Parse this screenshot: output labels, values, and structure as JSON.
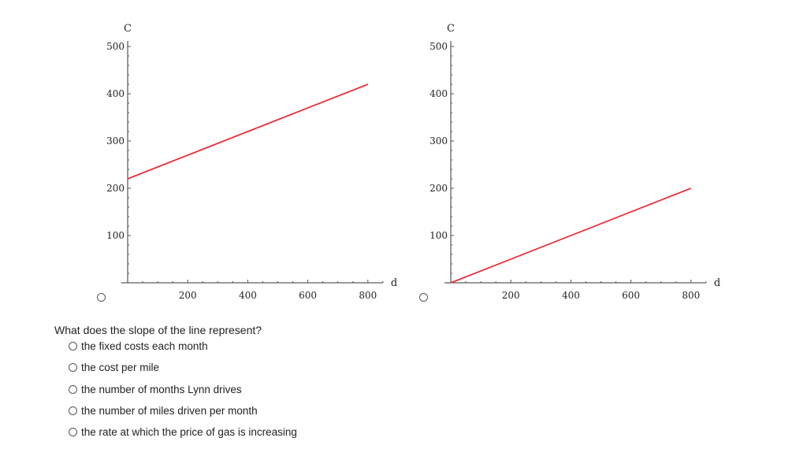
{
  "chart_data": [
    {
      "type": "line",
      "xlabel": "d",
      "ylabel": "C",
      "xlim": [
        0,
        850
      ],
      "ylim": [
        0,
        500
      ],
      "x_ticks": [
        200,
        400,
        600,
        800
      ],
      "y_ticks": [
        100,
        200,
        300,
        400,
        500
      ],
      "series": [
        {
          "x": [
            0,
            800
          ],
          "y": [
            220,
            420
          ],
          "color": "#e8323c"
        }
      ]
    },
    {
      "type": "line",
      "xlabel": "d",
      "ylabel": "C",
      "xlim": [
        0,
        850
      ],
      "ylim": [
        0,
        500
      ],
      "x_ticks": [
        200,
        400,
        600,
        800
      ],
      "y_ticks": [
        100,
        200,
        300,
        400,
        500
      ],
      "series": [
        {
          "x": [
            0,
            800
          ],
          "y": [
            0,
            200
          ],
          "color": "#e8323c"
        }
      ]
    }
  ],
  "question": {
    "text": "What does the slope of the line represent?",
    "options": [
      "the fixed costs each month",
      "the cost per mile",
      "the number of months Lynn drives",
      "the number of miles driven per month",
      "the rate at which the price of gas is increasing"
    ]
  }
}
